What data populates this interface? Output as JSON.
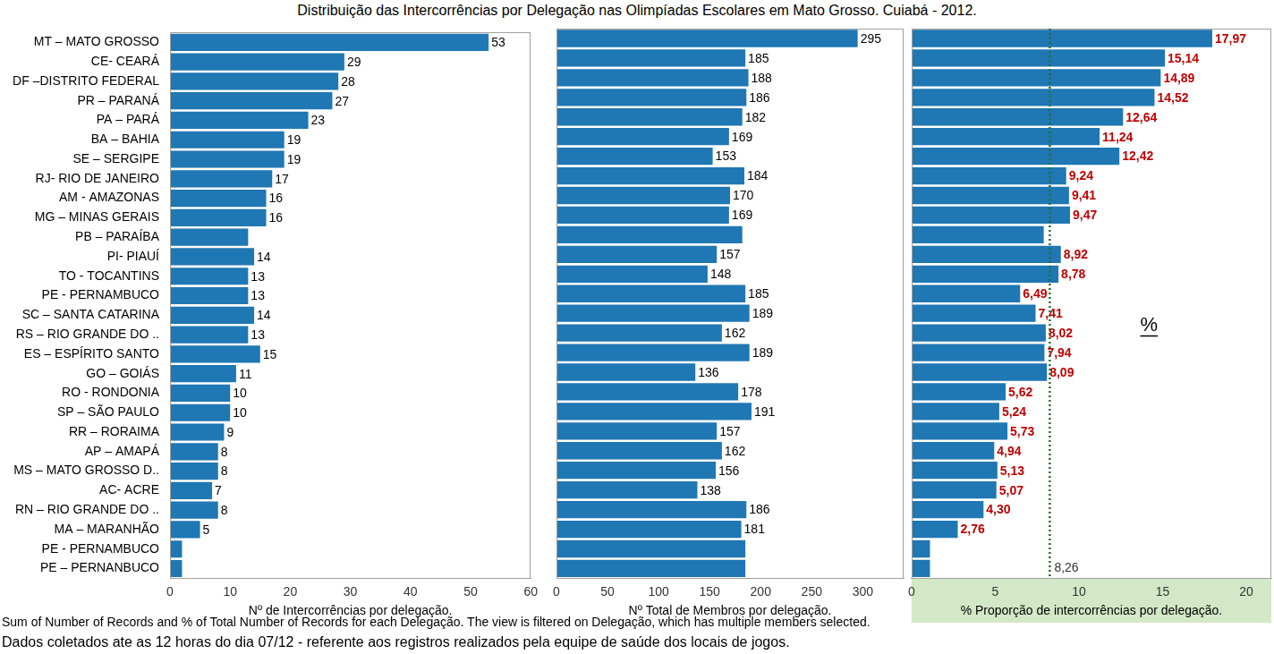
{
  "title": "Distribuição das Intercorrências por Delegação nas Olimpíadas Escolares em Mato Grosso. Cuiabá - 2012.",
  "notes": [
    "Sum of Number of Records and % of Total Number of Records for each Delegação. The view is filtered on Delegação, which has multiple members selected.",
    "Dados coletados ate as 12 horas do dia 07/12 - referente aos registros realizados pela equipe de saúde dos locais de jogos."
  ],
  "chart_data": [
    {
      "type": "bar",
      "orientation": "horizontal",
      "color": "#1f77b4",
      "grid": false,
      "data_labels": true,
      "x_label": "Nº de Intercorrências por delegação.",
      "categories": [
        "MT – MATO GROSSO",
        "CE- CEARÁ",
        "DF –DISTRITO FEDERAL",
        "PR – PARANÁ",
        "PA – PARÁ",
        "BA – BAHIA",
        "SE – SERGIPE",
        "RJ- RIO DE JANEIRO",
        "AM - AMAZONAS",
        "MG – MINAS GERAIS",
        "PB – PARAÍBA",
        "PI- PIAUÍ",
        "TO - TOCANTINS",
        "PE - PERNAMBUCO",
        "SC – SANTA CATARINA",
        "RS – RIO GRANDE DO ..",
        "ES – ESPÍRITO SANTO",
        "GO – GOIÁS",
        "RO - RONDONIA",
        "SP – SÃO PAULO",
        "RR – RORAIMA",
        "AP – AMAPÁ",
        "MS – MATO GROSSO D..",
        "AC- ACRE",
        "RN – RIO GRANDE DO ..",
        "MA – MARANHÃO",
        "PE - PERNAMBUCO",
        "PE – PERNANBUCO"
      ],
      "values": [
        53,
        29,
        28,
        27,
        23,
        19,
        19,
        17,
        16,
        16,
        13,
        14,
        13,
        13,
        14,
        13,
        15,
        11,
        10,
        10,
        9,
        8,
        8,
        7,
        8,
        5,
        2,
        2
      ],
      "value_labels": [
        "53",
        "29",
        "28",
        "27",
        "23",
        "19",
        "19",
        "17",
        "16",
        "16",
        null,
        "14",
        "13",
        "13",
        "14",
        "13",
        "15",
        "11",
        "10",
        "10",
        "9",
        "8",
        "8",
        "7",
        "8",
        "5",
        null,
        null
      ],
      "xlim": [
        0,
        60
      ],
      "xticks": [
        0,
        10,
        20,
        30,
        40,
        50,
        60
      ]
    },
    {
      "type": "bar",
      "orientation": "horizontal",
      "color": "#1f77b4",
      "grid": false,
      "data_labels": true,
      "tick_labels": "x",
      "x_label": "Nº Total de Membros por delegação.",
      "categories": [
        "MT – MATO GROSSO",
        "CE- CEARÁ",
        "DF –DISTRITO FEDERAL",
        "PR – PARANÁ",
        "PA – PARÁ",
        "BA – BAHIA",
        "SE – SERGIPE",
        "RJ- RIO DE JANEIRO",
        "AM - AMAZONAS",
        "MG – MINAS GERAIS",
        "PB – PARAÍBA",
        "PI- PIAUÍ",
        "TO - TOCANTINS",
        "PE - PERNAMBUCO",
        "SC – SANTA CATARINA",
        "RS – RIO GRANDE DO ..",
        "ES – ESPÍRITO SANTO",
        "GO – GOIÁS",
        "RO - RONDONIA",
        "SP – SÃO PAULO",
        "RR – RORAIMA",
        "AP – AMAPÁ",
        "MS – MATO GROSSO D..",
        "AC- ACRE",
        "RN – RIO GRANDE DO ..",
        "MA – MARANHÃO",
        "PE - PERNAMBUCO",
        "PE – PERNANBUCO"
      ],
      "values": [
        295,
        185,
        188,
        186,
        182,
        169,
        153,
        184,
        170,
        169,
        182,
        157,
        148,
        185,
        189,
        162,
        189,
        136,
        178,
        191,
        157,
        162,
        156,
        138,
        186,
        181,
        185,
        185
      ],
      "value_labels": [
        "295",
        "185",
        "188",
        "186",
        "182",
        "169",
        "153",
        "184",
        "170",
        "169",
        null,
        "157",
        "148",
        "185",
        "189",
        "162",
        "189",
        "136",
        "178",
        "191",
        "157",
        "162",
        "156",
        "138",
        "186",
        "181",
        null,
        null
      ],
      "xlim": [
        0,
        340
      ],
      "xticks": [
        0,
        50,
        100,
        150,
        200,
        250,
        300
      ]
    },
    {
      "type": "bar",
      "orientation": "horizontal",
      "color": "#1f77b4",
      "grid": false,
      "data_labels": true,
      "tick_labels": "x",
      "x_label": "% Proporção de intercorrências por delegação.",
      "categories": [
        "MT – MATO GROSSO",
        "CE- CEARÁ",
        "DF –DISTRITO FEDERAL",
        "PR – PARANÁ",
        "PA – PARÁ",
        "BA – BAHIA",
        "SE – SERGIPE",
        "RJ- RIO DE JANEIRO",
        "AM - AMAZONAS",
        "MG – MINAS GERAIS",
        "PB – PARAÍBA",
        "PI- PIAUÍ",
        "TO - TOCANTINS",
        "PE - PERNAMBUCO",
        "SC – SANTA CATARINA",
        "RS – RIO GRANDE DO ..",
        "ES – ESPÍRITO SANTO",
        "GO – GOIÁS",
        "RO - RONDONIA",
        "SP – SÃO PAULO",
        "RR – RORAIMA",
        "AP – AMAPÁ",
        "MS – MATO GROSSO D..",
        "AC- ACRE",
        "RN – RIO GRANDE DO ..",
        "MA – MARANHÃO",
        "PE - PERNAMBUCO",
        "PE – PERNANBUCO"
      ],
      "values": [
        17.97,
        15.14,
        14.89,
        14.52,
        12.64,
        11.24,
        12.42,
        9.24,
        9.41,
        9.47,
        7.9,
        8.92,
        8.78,
        6.49,
        7.41,
        8.02,
        7.94,
        8.09,
        5.62,
        5.24,
        5.73,
        4.94,
        5.13,
        5.07,
        4.3,
        2.76,
        1.1,
        1.1
      ],
      "value_labels": [
        "17,97",
        "15,14",
        "14,89",
        "14,52",
        "12,64",
        "11,24",
        "12,42",
        "9,24",
        "9,41",
        "9,47",
        null,
        "8,92",
        "8,78",
        "6,49",
        "7,41",
        "8,02",
        "7,94",
        "8,09",
        "5,62",
        "5,24",
        "5,73",
        "4,94",
        "5,13",
        "5,07",
        "4,30",
        "2,76",
        null,
        null
      ],
      "xlim": [
        0,
        21.5
      ],
      "xticks": [
        0,
        5,
        10,
        15,
        20
      ],
      "reference_line": {
        "value": 8.26,
        "label": "8,26"
      },
      "annotation": "%"
    }
  ]
}
